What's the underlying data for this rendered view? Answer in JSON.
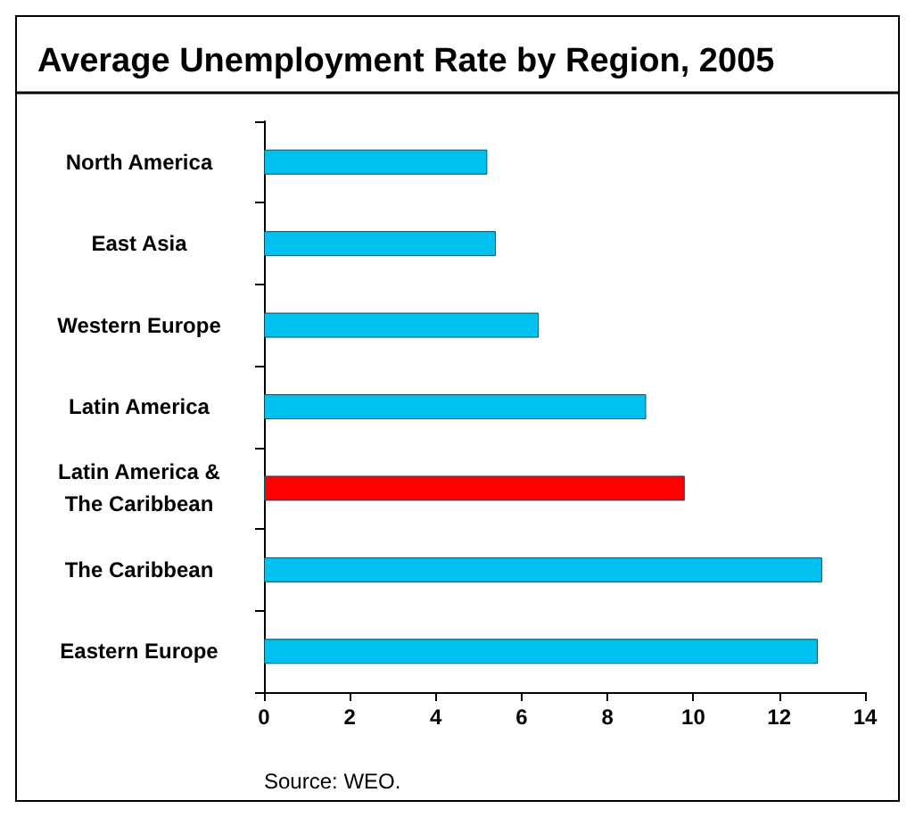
{
  "chart_data": {
    "type": "bar",
    "orientation": "horizontal",
    "title": "Average Unemployment Rate by Region, 2005",
    "categories": [
      "North America",
      "East Asia",
      "Western Europe",
      "Latin America",
      "Latin America &\nThe Caribbean",
      "The Caribbean",
      "Eastern Europe"
    ],
    "values": [
      5.2,
      5.4,
      6.4,
      8.9,
      9.8,
      13.0,
      12.9
    ],
    "colors": [
      "#00c0f0",
      "#00c0f0",
      "#00c0f0",
      "#00c0f0",
      "#ff0000",
      "#00c0f0",
      "#00c0f0"
    ],
    "xlim": [
      0,
      14
    ],
    "xticks": [
      0,
      2,
      4,
      6,
      8,
      10,
      12,
      14
    ],
    "grid": false,
    "annotations": [
      "Source: WEO."
    ]
  }
}
